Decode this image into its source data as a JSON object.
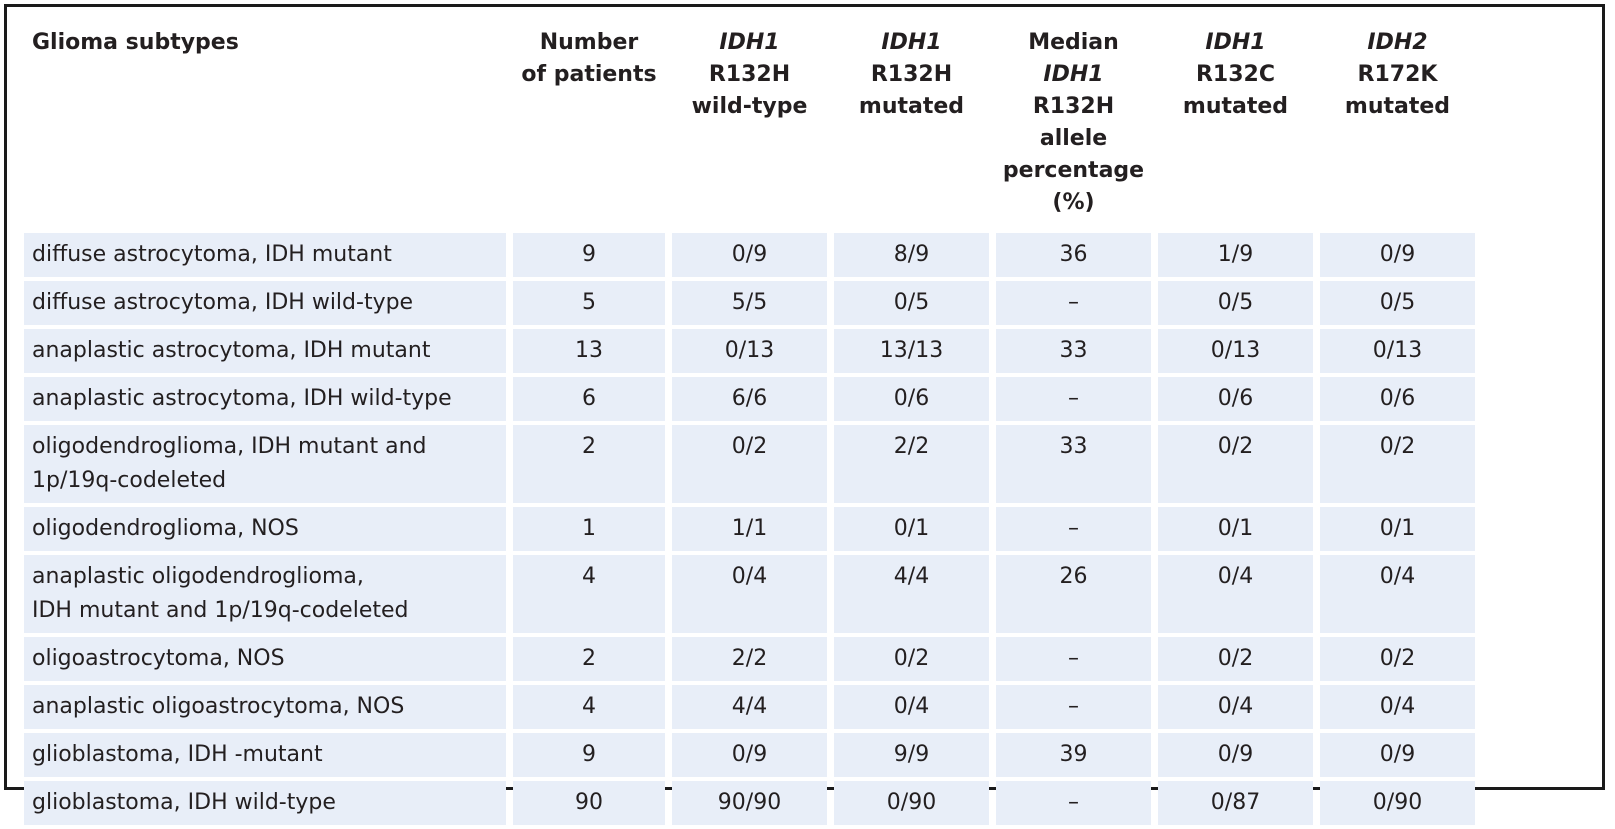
{
  "headers": [
    {
      "lines": [
        [
          {
            "t": "Glioma subtypes",
            "i": false
          }
        ]
      ]
    },
    {
      "lines": [
        [
          {
            "t": "Number",
            "i": false
          }
        ],
        [
          {
            "t": "of patients",
            "i": false
          }
        ]
      ]
    },
    {
      "lines": [
        [
          {
            "t": "IDH1",
            "i": true
          }
        ],
        [
          {
            "t": "R132H",
            "i": false
          }
        ],
        [
          {
            "t": "wild-type",
            "i": false
          }
        ]
      ]
    },
    {
      "lines": [
        [
          {
            "t": "IDH1",
            "i": true
          }
        ],
        [
          {
            "t": "R132H",
            "i": false
          }
        ],
        [
          {
            "t": "mutated",
            "i": false
          }
        ]
      ]
    },
    {
      "lines": [
        [
          {
            "t": "Median ",
            "i": false
          },
          {
            "t": "IDH1",
            "i": true
          }
        ],
        [
          {
            "t": "R132H allele",
            "i": false
          }
        ],
        [
          {
            "t": "percentage",
            "i": false
          }
        ],
        [
          {
            "t": "(%)",
            "i": false
          }
        ]
      ]
    },
    {
      "lines": [
        [
          {
            "t": "IDH1",
            "i": true
          }
        ],
        [
          {
            "t": "R132C",
            "i": false
          }
        ],
        [
          {
            "t": "mutated",
            "i": false
          }
        ]
      ]
    },
    {
      "lines": [
        [
          {
            "t": "IDH2",
            "i": true
          }
        ],
        [
          {
            "t": "R172K",
            "i": false
          }
        ],
        [
          {
            "t": "mutated",
            "i": false
          }
        ]
      ]
    }
  ],
  "rows": [
    {
      "subtype": [
        "diffuse astrocytoma, IDH mutant"
      ],
      "cells": [
        "9",
        "0/9",
        "8/9",
        "36",
        "1/9",
        "0/9"
      ]
    },
    {
      "subtype": [
        "diffuse astrocytoma, IDH wild-type"
      ],
      "cells": [
        "5",
        "5/5",
        "0/5",
        "–",
        "0/5",
        "0/5"
      ]
    },
    {
      "subtype": [
        "anaplastic astrocytoma, IDH mutant"
      ],
      "cells": [
        "13",
        "0/13",
        "13/13",
        "33",
        "0/13",
        "0/13"
      ]
    },
    {
      "subtype": [
        "anaplastic astrocytoma, IDH wild-type"
      ],
      "cells": [
        "6",
        "6/6",
        "0/6",
        "–",
        "0/6",
        "0/6"
      ]
    },
    {
      "subtype": [
        "oligodendroglioma, IDH mutant and",
        "1p/19q-codeleted"
      ],
      "cells": [
        "2",
        "0/2",
        "2/2",
        "33",
        "0/2",
        "0/2"
      ]
    },
    {
      "subtype": [
        "oligodendroglioma, NOS"
      ],
      "cells": [
        "1",
        "1/1",
        "0/1",
        "–",
        "0/1",
        "0/1"
      ]
    },
    {
      "subtype": [
        "anaplastic oligodendroglioma,",
        "IDH mutant and 1p/19q-codeleted"
      ],
      "cells": [
        "4",
        "0/4",
        "4/4",
        "26",
        "0/4",
        "0/4"
      ]
    },
    {
      "subtype": [
        "oligoastrocytoma, NOS"
      ],
      "cells": [
        "2",
        "2/2",
        "0/2",
        "–",
        "0/2",
        "0/2"
      ]
    },
    {
      "subtype": [
        "anaplastic oligoastrocytoma, NOS"
      ],
      "cells": [
        "4",
        "4/4",
        "0/4",
        "–",
        "0/4",
        "0/4"
      ]
    },
    {
      "subtype": [
        "glioblastoma, IDH -mutant"
      ],
      "cells": [
        "9",
        "0/9",
        "9/9",
        "39",
        "0/9",
        "0/9"
      ]
    },
    {
      "subtype": [
        "glioblastoma, IDH wild-type"
      ],
      "cells": [
        "90",
        "90/90",
        "0/90",
        "–",
        "0/87",
        "0/90"
      ]
    }
  ],
  "colors": {
    "cell_fill": "#e8eef8",
    "border": "#1a1a1a",
    "text": "#231f20"
  }
}
